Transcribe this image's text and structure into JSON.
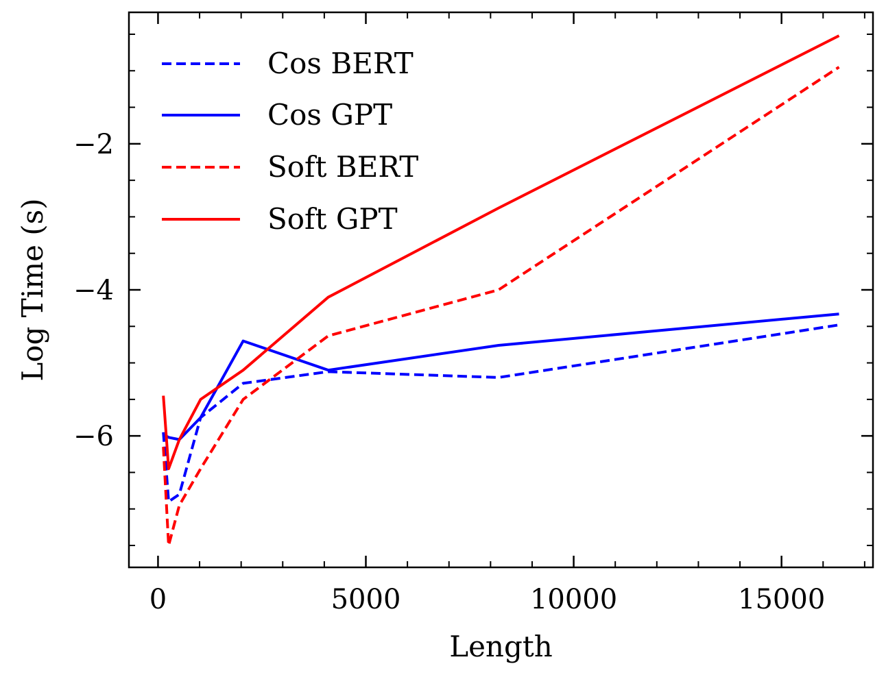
{
  "chart_data": {
    "type": "line",
    "title": "",
    "xlabel": "Length",
    "ylabel": "Log Time (s)",
    "xlim": [
      -700,
      17200
    ],
    "ylim": [
      -7.8,
      -0.2
    ],
    "xticks": [
      0,
      5000,
      10000,
      15000
    ],
    "xtick_labels": [
      "0",
      "5000",
      "10000",
      "15000"
    ],
    "yticks": [
      -2,
      -4,
      -6
    ],
    "ytick_labels": [
      "−2",
      "−4",
      "−6"
    ],
    "grid": false,
    "legend_position": "top-left",
    "series": [
      {
        "name": "Cos BERT",
        "color": "#0000ff",
        "dash": "dashed",
        "x": [
          128,
          256,
          512,
          1024,
          2048,
          4096,
          8192,
          16384
        ],
        "y": [
          -5.95,
          -6.9,
          -6.8,
          -5.75,
          -5.28,
          -5.12,
          -5.2,
          -4.48
        ]
      },
      {
        "name": "Cos GPT",
        "color": "#0000ff",
        "dash": "solid",
        "x": [
          128,
          256,
          512,
          1024,
          2048,
          4096,
          8192,
          16384
        ],
        "y": [
          -5.98,
          -6.02,
          -6.05,
          -5.75,
          -4.7,
          -5.1,
          -4.76,
          -4.33
        ]
      },
      {
        "name": "Soft BERT",
        "color": "#ff0000",
        "dash": "dashed",
        "x": [
          128,
          256,
          512,
          1024,
          2048,
          4096,
          8192,
          16384
        ],
        "y": [
          -6.15,
          -7.5,
          -6.95,
          -6.45,
          -5.5,
          -4.63,
          -4.0,
          -0.95
        ]
      },
      {
        "name": "Soft GPT",
        "color": "#ff0000",
        "dash": "solid",
        "x": [
          128,
          256,
          512,
          1024,
          2048,
          4096,
          8192,
          16384
        ],
        "y": [
          -5.45,
          -6.45,
          -6.05,
          -5.5,
          -5.1,
          -4.1,
          -2.88,
          -0.52
        ]
      }
    ]
  }
}
